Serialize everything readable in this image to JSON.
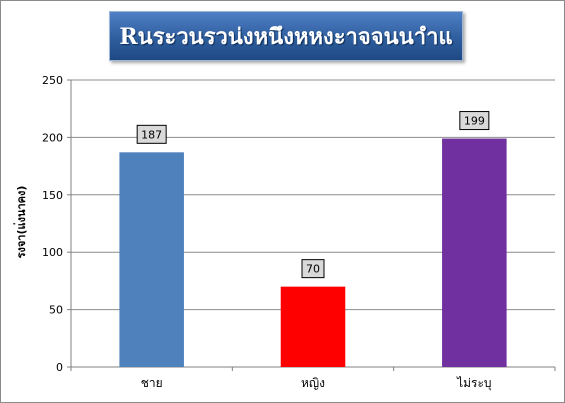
{
  "chart_data": {
    "type": "bar",
    "title": "Rนระวนรวน่งหนึงหหงะาจจนนาำแ",
    "xlabel": "",
    "ylabel": "รงจา(แ่งนาคง)",
    "categories": [
      "ชาย",
      "หญิง",
      "ไม่ระบุ"
    ],
    "values": [
      187,
      70,
      199
    ],
    "data_labels": [
      "187",
      "70",
      "199"
    ],
    "colors": [
      "#4f81bd",
      "#ff0000",
      "#7030a0"
    ],
    "ylim": [
      0,
      250
    ],
    "yticks": [
      0,
      50,
      100,
      150,
      200,
      250
    ],
    "ytick_labels": [
      "0",
      "50",
      "100",
      "150",
      "200",
      "250"
    ],
    "grid": true,
    "legend": "none"
  }
}
